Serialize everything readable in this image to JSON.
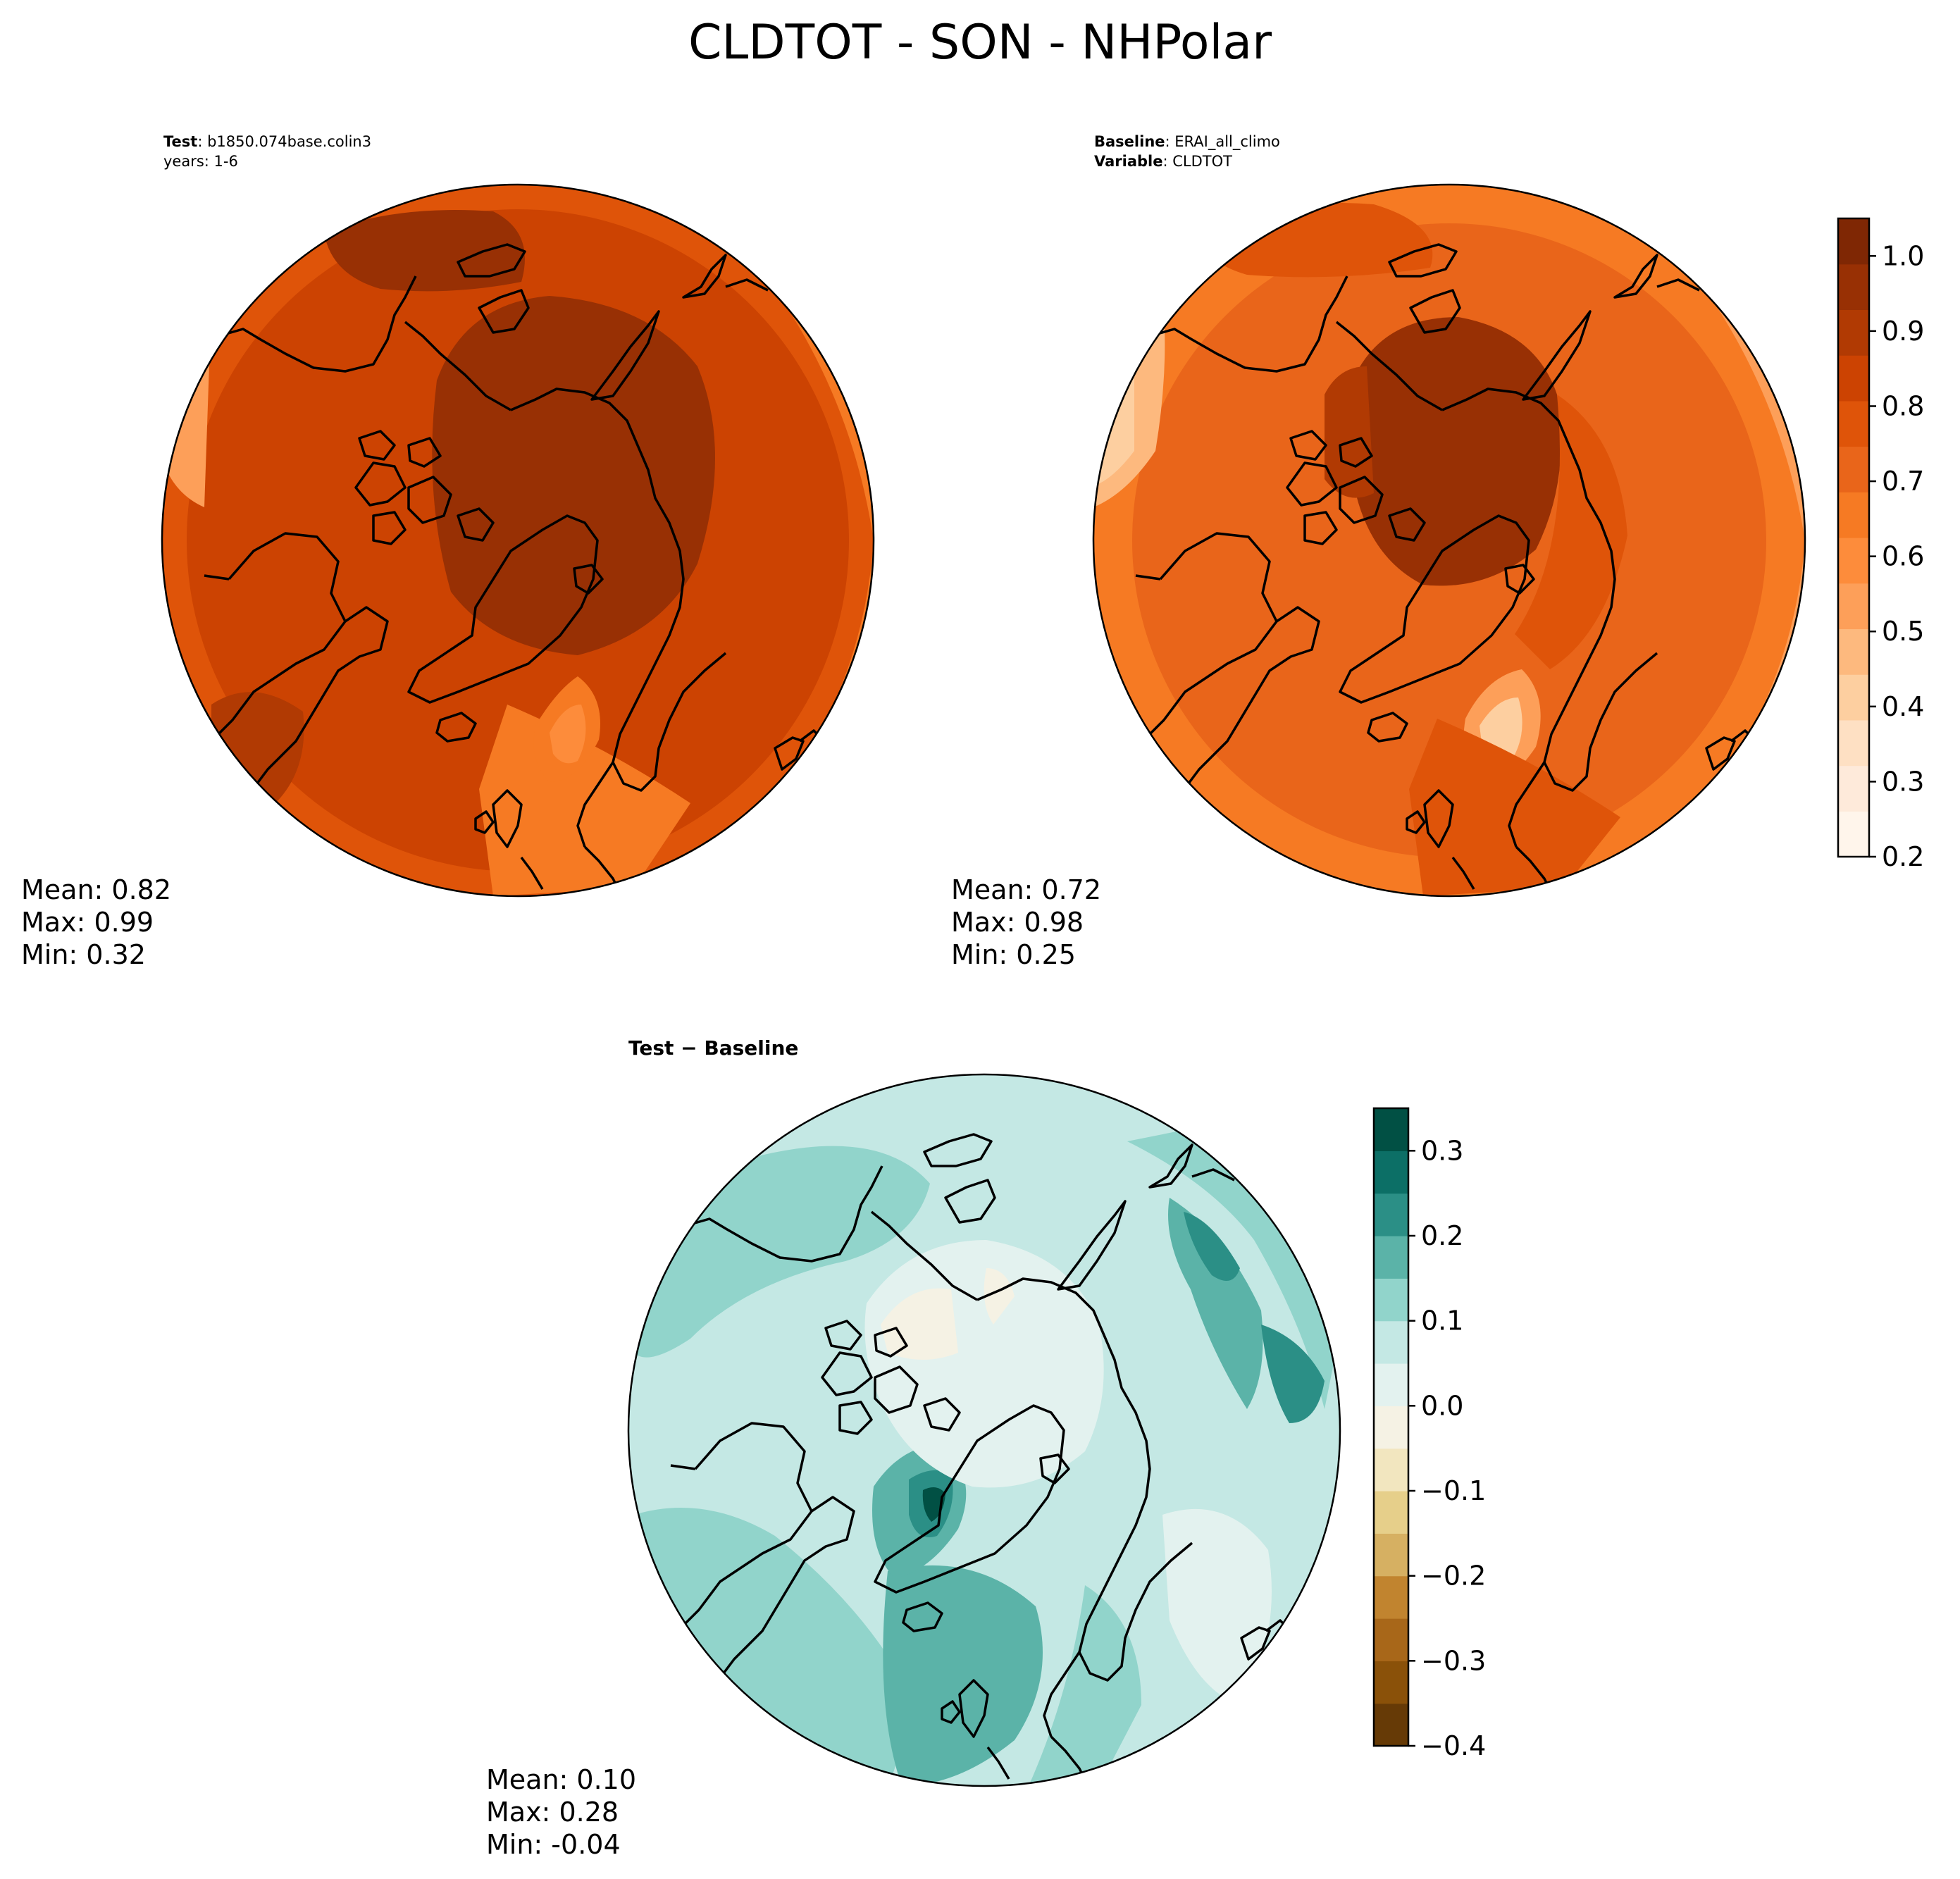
{
  "figure": {
    "suptitle": "CLDTOT - SON - NHPolar",
    "test_panel": {
      "label_bold": "Test",
      "label_text": ": b1850.074base.colin3",
      "years": "years: 1-6",
      "stats": {
        "mean": "Mean:  0.82",
        "max": "Max:  0.99",
        "min": "Min:  0.32"
      }
    },
    "baseline_panel": {
      "label_bold": "Baseline",
      "label_text": ": ERAI_all_climo",
      "variable_bold": "Variable",
      "variable_text": ": CLDTOT",
      "stats": {
        "mean": "Mean:  0.72",
        "max": "Max:  0.98",
        "min": "Min:  0.25"
      }
    },
    "diff_panel": {
      "title": "Test − Baseline",
      "stats": {
        "mean": "Mean:  0.10",
        "max": "Max:  0.28",
        "min": "Min: -0.04"
      }
    }
  },
  "chart_data": [
    {
      "type": "heatmap",
      "title": "Test",
      "projection": "north-polar-stereographic",
      "colormap": "Oranges",
      "colorbar": "shared with Baseline",
      "stats": {
        "mean": 0.82,
        "max": 0.99,
        "min": 0.32
      }
    },
    {
      "type": "heatmap",
      "title": "Baseline",
      "projection": "north-polar-stereographic",
      "colormap": "Oranges",
      "colorbar": {
        "range": [
          0.2,
          1.05
        ],
        "ticks": [
          "0.2",
          "0.3",
          "0.4",
          "0.5",
          "0.6",
          "0.7",
          "0.8",
          "0.9",
          "1.0"
        ],
        "colors": [
          "#fff5eb",
          "#feeada",
          "#fee0c3",
          "#fdcfa0",
          "#fdb97e",
          "#fd9f59",
          "#fd8c3b",
          "#f67a23",
          "#e9651a",
          "#df5409",
          "#cc4302",
          "#b13a03",
          "#983004",
          "#7f2704"
        ]
      },
      "stats": {
        "mean": 0.72,
        "max": 0.98,
        "min": 0.25
      }
    },
    {
      "type": "heatmap",
      "title": "Test − Baseline",
      "projection": "north-polar-stereographic",
      "colormap": "BrBG",
      "colorbar": {
        "range": [
          -0.4,
          0.35
        ],
        "ticks": [
          "−0.4",
          "−0.3",
          "−0.2",
          "−0.1",
          "0.0",
          "0.1",
          "0.2",
          "0.3"
        ],
        "colors": [
          "#663a06",
          "#8a5109",
          "#a86719",
          "#c1842f",
          "#d6b062",
          "#e6cf8a",
          "#f2e6bf",
          "#f5f2e4",
          "#e3f2ef",
          "#c4e8e4",
          "#91d4cb",
          "#5bb3a8",
          "#2b8f86",
          "#0c6f66",
          "#015044"
        ]
      },
      "stats": {
        "mean": 0.1,
        "max": 0.28,
        "min": -0.04
      }
    }
  ]
}
